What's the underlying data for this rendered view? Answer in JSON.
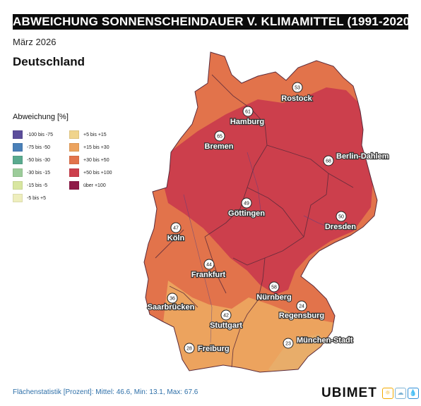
{
  "header": {
    "title": "ABWEICHUNG SONNENSCHEINDAUER V. KLIMAMITTEL (1991-2020)",
    "date": "März 2026",
    "region": "Deutschland"
  },
  "legend": {
    "title": "Abweichung [%]",
    "items": [
      {
        "label": "-100 bis -75",
        "color": "#5c4e9b"
      },
      {
        "label": "-75 bis -50",
        "color": "#4a80b8"
      },
      {
        "label": "-50 bis -30",
        "color": "#5aaa8e"
      },
      {
        "label": "-30 bis -15",
        "color": "#9ccc9a"
      },
      {
        "label": "-15 bis -5",
        "color": "#d8e6a0"
      },
      {
        "label": "-5 bis +5",
        "color": "#eeeebd"
      },
      {
        "label": "+5 bis +15",
        "color": "#f0d48c"
      },
      {
        "label": "+15 bis +30",
        "color": "#eca35e"
      },
      {
        "label": "+30 bis +50",
        "color": "#e2734b"
      },
      {
        "label": "+50 bis +100",
        "color": "#cc3f4c"
      },
      {
        "label": "über +100",
        "color": "#8f1a48"
      }
    ]
  },
  "cities": [
    {
      "name": "Rostock",
      "value": "53"
    },
    {
      "name": "Hamburg",
      "value": "61"
    },
    {
      "name": "Bremen",
      "value": "65"
    },
    {
      "name": "Berlin-Dahlem",
      "value": "68"
    },
    {
      "name": "Göttingen",
      "value": "49"
    },
    {
      "name": "Dresden",
      "value": "50"
    },
    {
      "name": "Köln",
      "value": "47"
    },
    {
      "name": "Frankfurt",
      "value": "44"
    },
    {
      "name": "Nürnberg",
      "value": "58"
    },
    {
      "name": "Saarbrücken",
      "value": "36"
    },
    {
      "name": "Regensburg",
      "value": "24"
    },
    {
      "name": "Stuttgart",
      "value": "42"
    },
    {
      "name": "München-Stadt",
      "value": "23"
    },
    {
      "name": "Freiburg",
      "value": "28"
    }
  ],
  "footer": {
    "stats": "Flächenstatistik [Prozent]: Mittel: 46.6, Min: 13.1, Max: 67.6",
    "brand": "UBIMET"
  }
}
